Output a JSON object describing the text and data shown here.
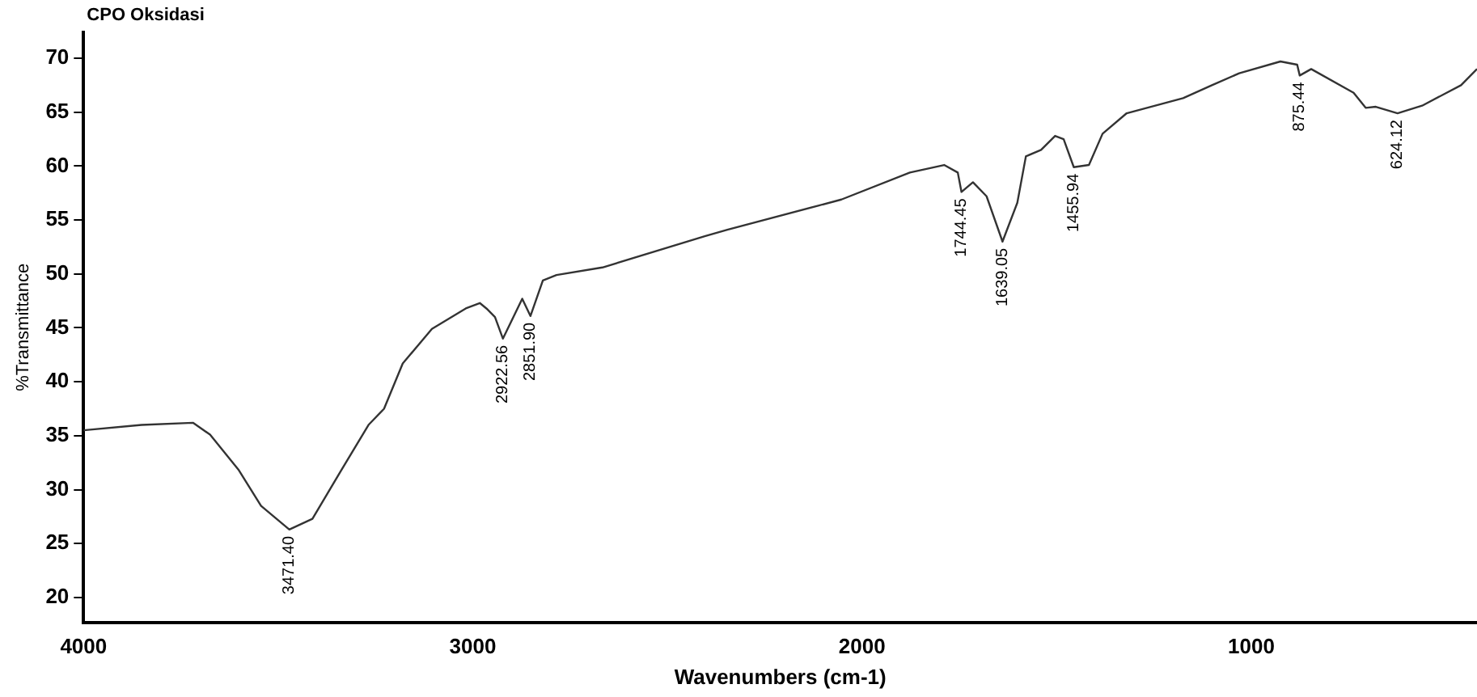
{
  "chart_data": {
    "type": "line",
    "title": "CPO Oksidasi",
    "xlabel": "Wavenumbers (cm-1)",
    "ylabel": "%Transmittance",
    "xlim": [
      4000,
      420
    ],
    "ylim": [
      17.7,
      72.4
    ],
    "xticks": [
      4000,
      3000,
      2000,
      1000
    ],
    "yticks": [
      20,
      25,
      30,
      35,
      40,
      45,
      50,
      55,
      60,
      65,
      70
    ],
    "grid": false,
    "legend": false,
    "marker": "none",
    "line_style": "solid",
    "series": [
      {
        "color": "#333333",
        "x": [
          4000,
          3851,
          3719,
          3675,
          3601,
          3544,
          3471.4,
          3412,
          3338,
          3268,
          3228,
          3180,
          3105,
          3018,
          2982,
          2965,
          2943,
          2922.56,
          2873,
          2851.9,
          2820,
          2785,
          2667,
          2404,
          2346,
          2053,
          1877,
          1789,
          1754,
          1744.45,
          1715,
          1680,
          1639.05,
          1601,
          1579,
          1540,
          1504,
          1482,
          1455.94,
          1417,
          1382,
          1320,
          1175,
          1101,
          1031,
          925,
          882,
          875.44,
          846,
          737,
          706,
          680,
          624.12,
          561,
          461,
          420
        ],
        "values": [
          35.5,
          36.0,
          36.2,
          35.1,
          31.8,
          28.5,
          26.3,
          27.3,
          31.8,
          36.0,
          37.5,
          41.7,
          44.9,
          46.8,
          47.3,
          46.8,
          46.0,
          44.0,
          47.7,
          46.1,
          49.4,
          49.9,
          50.6,
          53.5,
          54.1,
          56.9,
          59.4,
          60.1,
          59.4,
          57.6,
          58.5,
          57.2,
          53.0,
          56.6,
          60.9,
          61.5,
          62.8,
          62.5,
          59.9,
          60.1,
          63.0,
          64.9,
          66.3,
          67.5,
          68.6,
          69.7,
          69.4,
          68.4,
          69.0,
          66.8,
          65.4,
          65.5,
          64.9,
          65.6,
          67.5,
          69.0
        ]
      }
    ],
    "annotations": [
      {
        "text": "3471.40",
        "x": 3471.4,
        "y": 26.3
      },
      {
        "text": "2922.56",
        "x": 2922.56,
        "y": 44.0
      },
      {
        "text": "2851.90",
        "x": 2851.9,
        "y": 46.1
      },
      {
        "text": "1744.45",
        "x": 1744.45,
        "y": 57.6
      },
      {
        "text": "1639.05",
        "x": 1639.05,
        "y": 53.0
      },
      {
        "text": "1455.94",
        "x": 1455.94,
        "y": 59.9
      },
      {
        "text": "875.44",
        "x": 875.44,
        "y": 68.4
      },
      {
        "text": "624.12",
        "x": 624.12,
        "y": 64.9
      }
    ]
  }
}
